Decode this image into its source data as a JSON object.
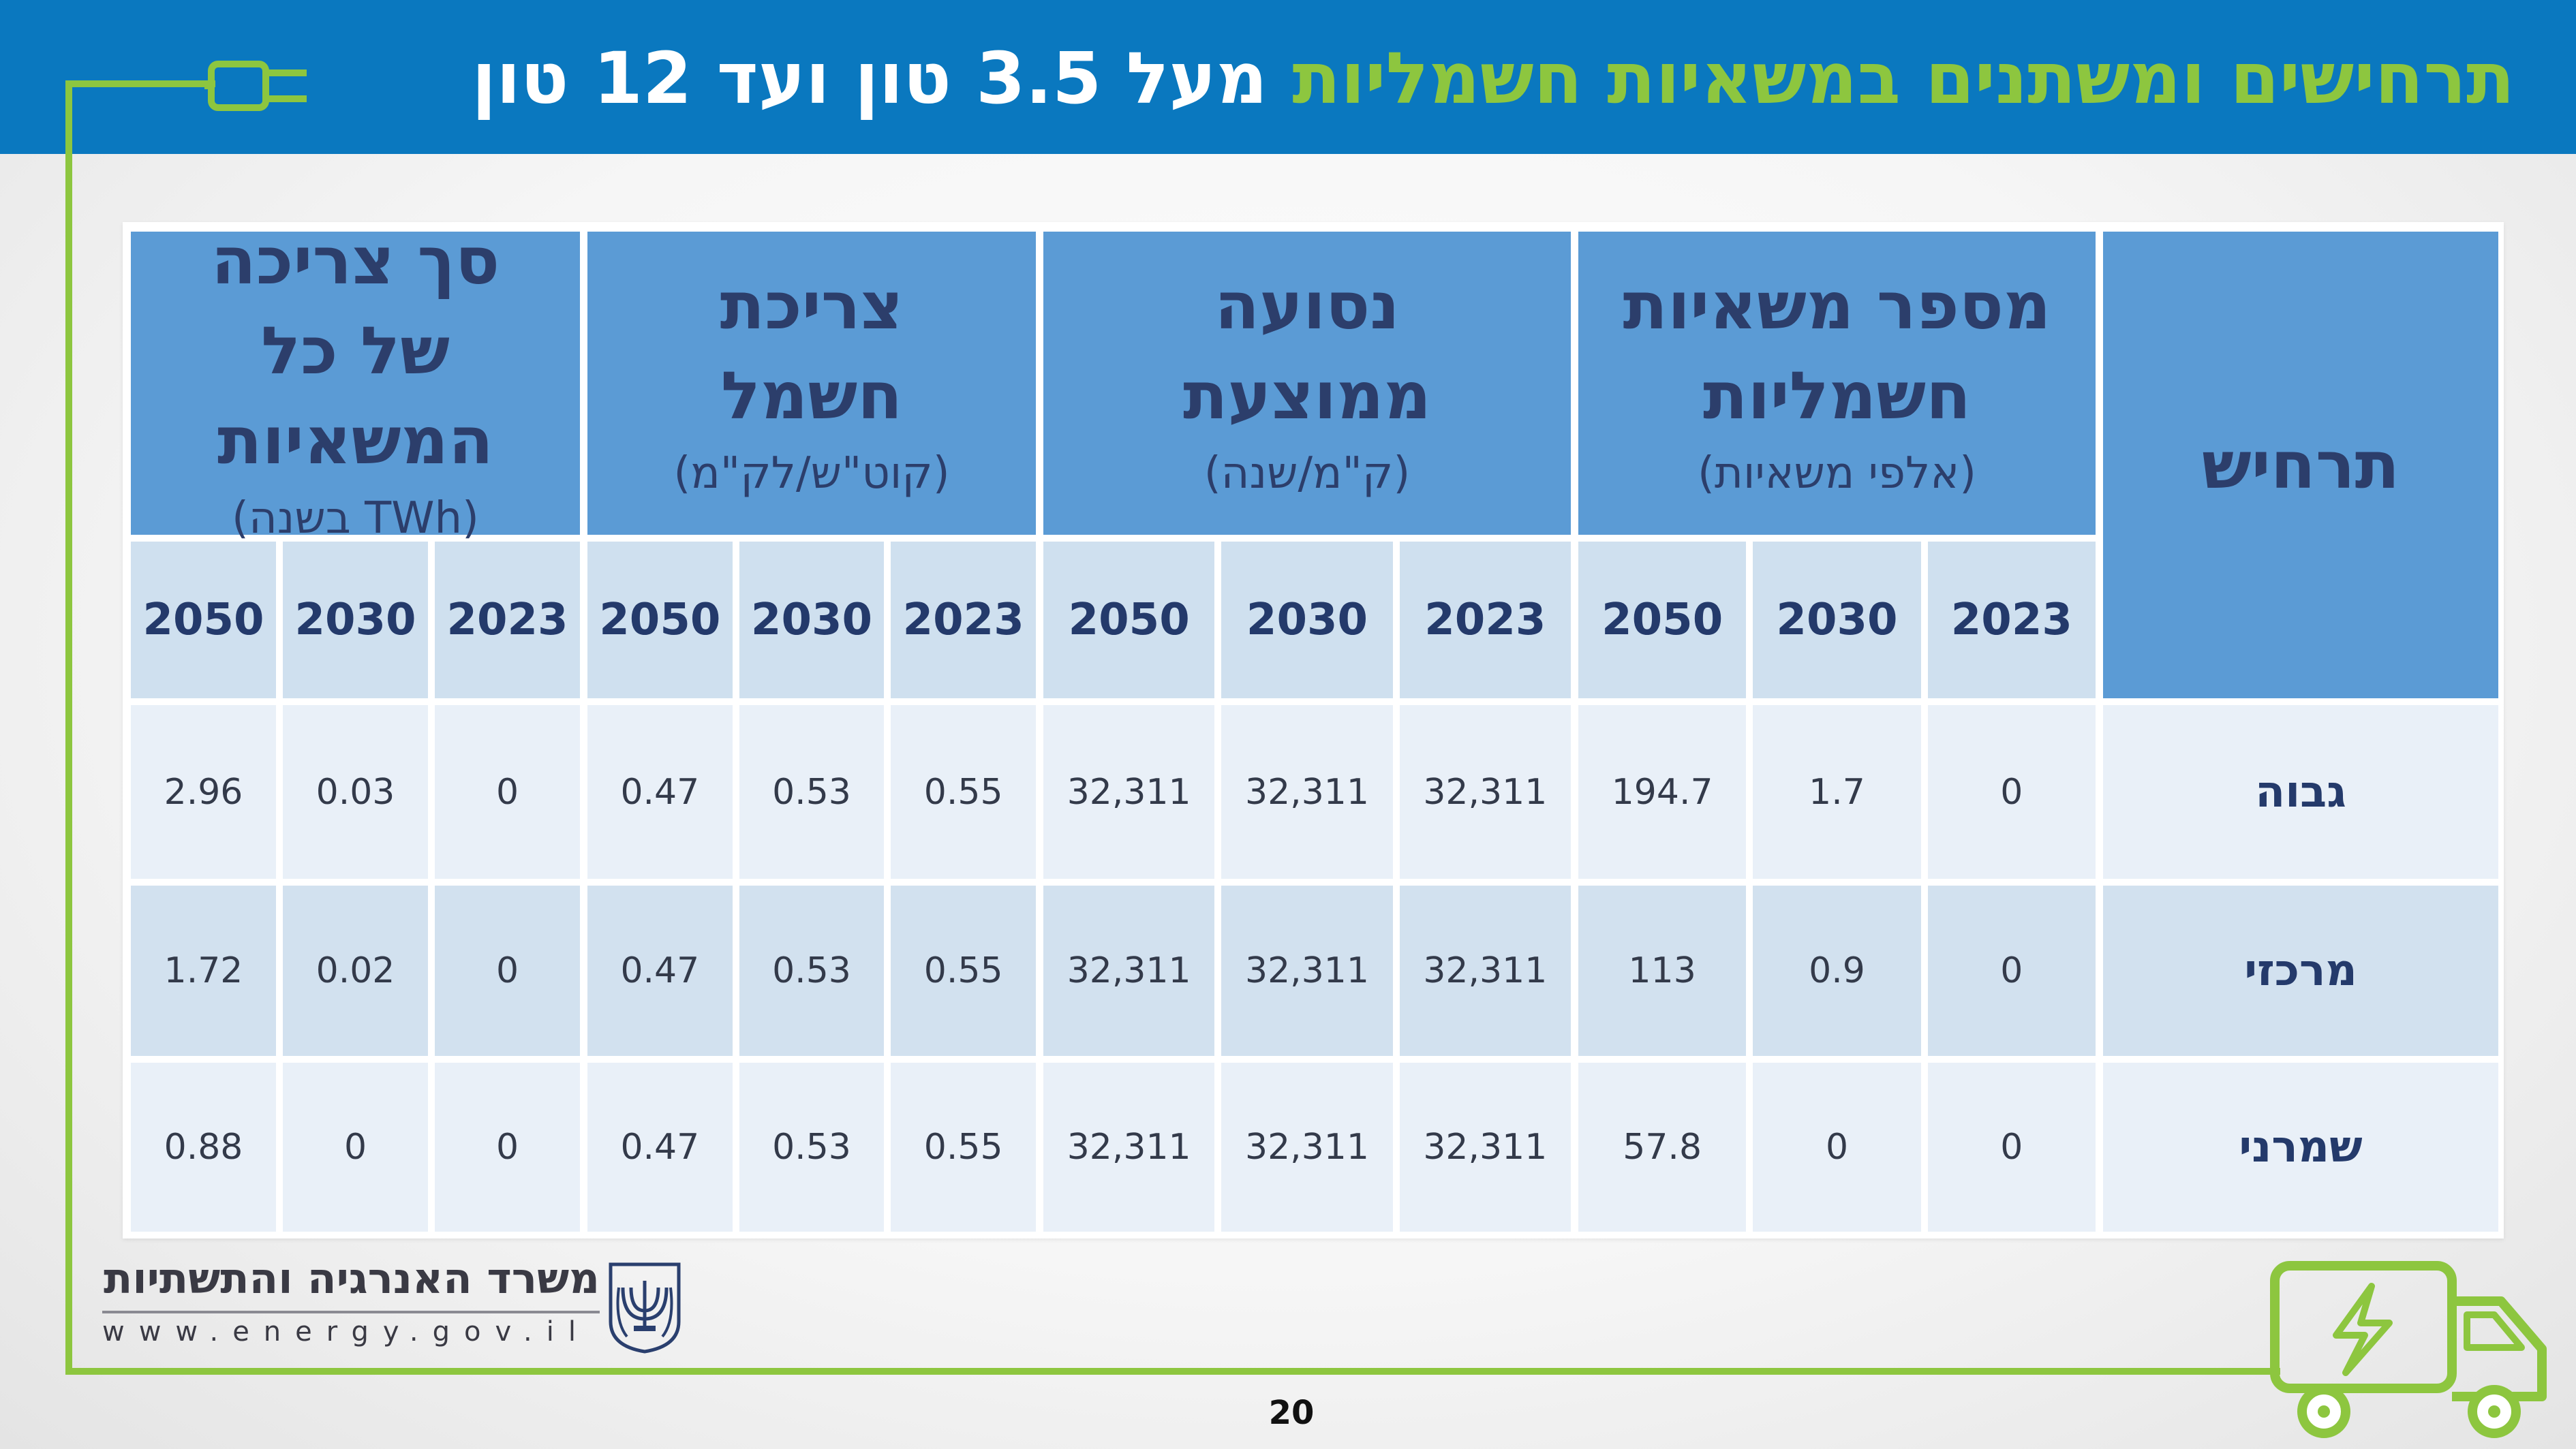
{
  "title": {
    "part_green": "תרחישים ומשתנים במשאיות חשמליות",
    "part_white": " מעל 3.5 טון ועד 12 טון"
  },
  "table": {
    "scenario_header": "תרחיש",
    "groups": [
      {
        "title": "מספר משאיות חשמליות",
        "unit": "(אלפי משאיות)"
      },
      {
        "title": "נסועה ממוצעת",
        "unit": "(ק\"מ/שנה)"
      },
      {
        "title": "צריכת חשמל",
        "unit": "(קוט\"ש/לק\"מ)"
      },
      {
        "title": "סך צריכה של כל המשאיות",
        "unit": "(TWh בשנה)"
      }
    ],
    "years": [
      "2023",
      "2030",
      "2050"
    ],
    "rows": [
      {
        "scenario": "גבוה",
        "values": [
          [
            "0",
            "1.7",
            "194.7"
          ],
          [
            "32,311",
            "32,311",
            "32,311"
          ],
          [
            "0.55",
            "0.53",
            "0.47"
          ],
          [
            "0",
            "0.03",
            "2.96"
          ]
        ]
      },
      {
        "scenario": "מרכזי",
        "values": [
          [
            "0",
            "0.9",
            "113"
          ],
          [
            "32,311",
            "32,311",
            "32,311"
          ],
          [
            "0.55",
            "0.53",
            "0.47"
          ],
          [
            "0",
            "0.02",
            "1.72"
          ]
        ]
      },
      {
        "scenario": "שמרני",
        "values": [
          [
            "0",
            "0",
            "57.8"
          ],
          [
            "32,311",
            "32,311",
            "32,311"
          ],
          [
            "0.55",
            "0.53",
            "0.47"
          ],
          [
            "0",
            "0",
            "0.88"
          ]
        ]
      }
    ]
  },
  "footer": {
    "ministry_name": "משרד האנרגיה והתשתיות",
    "website": "www.energy.gov.il",
    "page_number": "20"
  },
  "colors": {
    "header_bg": "#0a78bf",
    "title_green": "#8dc63f",
    "group_header_bg": "#5b9bd5",
    "year_header_bg": "#cfe0ef",
    "row_light": "#e9f0f8",
    "row_dark": "#d2e1ef",
    "accent_line": "#8dc63f"
  },
  "icons": [
    "plug-icon",
    "truck-icon",
    "menorah-emblem-icon"
  ]
}
